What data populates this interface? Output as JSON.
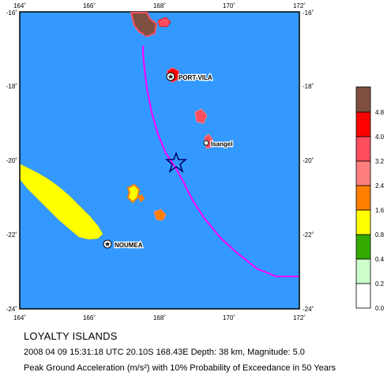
{
  "map": {
    "x_ticks": [
      "164˚",
      "166˚",
      "168˚",
      "170˚",
      "172˚"
    ],
    "y_ticks": [
      "-16˚",
      "-18˚",
      "-20˚",
      "-22˚",
      "-24˚"
    ],
    "x_range": [
      164,
      172
    ],
    "y_range": [
      -24,
      -16
    ],
    "ocean_color": "#3399ff",
    "trench_color": "#ff00ff",
    "cities": [
      {
        "name": "PORT-VILA",
        "lon": 168.32,
        "lat": -17.73
      },
      {
        "name": "Isangel",
        "lon": 169.27,
        "lat": -19.53
      },
      {
        "name": "NOUMEA",
        "lon": 166.45,
        "lat": -22.27
      }
    ],
    "epicenter": {
      "lon": 168.43,
      "lat": -20.1,
      "marker": "star-icon"
    }
  },
  "legend": {
    "labels": [
      "4.8",
      "4.0",
      "3.2",
      "2.4",
      "1.6",
      "0.8",
      "0.4",
      "0.2",
      "0.0"
    ],
    "colors": [
      "#7f4f3f",
      "#ff0000",
      "#ff4f5f",
      "#ff7f7f",
      "#ff8000",
      "#ffff00",
      "#33aa00",
      "#ccffcc",
      "#ffffff"
    ]
  },
  "caption": {
    "region": "LOYALTY ISLANDS",
    "event": "2008 04 09 15:31:18 UTC 20.10S 168.43E Depth: 38 km, Magnitude: 5.0",
    "title": "Peak Ground Acceleration (m/s²) with 10% Probability of Exceedance in 50 Years"
  }
}
